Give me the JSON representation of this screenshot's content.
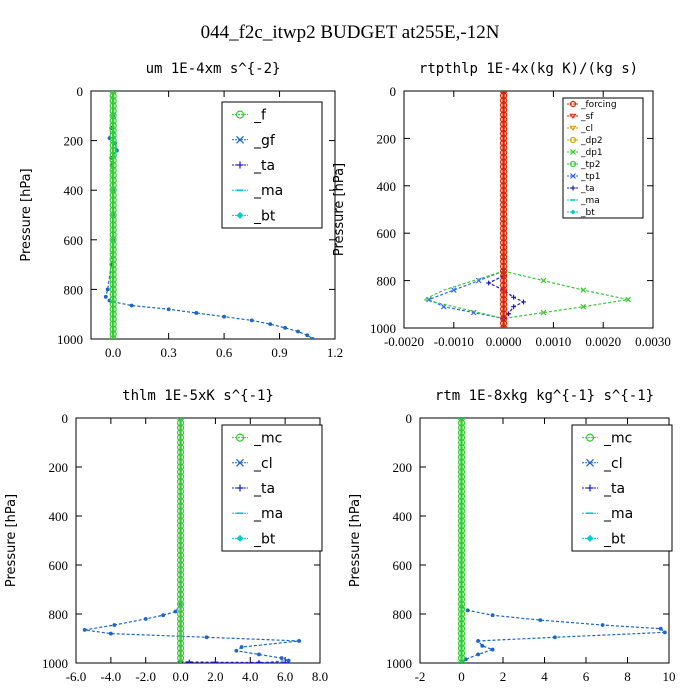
{
  "page_title": "044_f2c_itwp2  BUDGET at255E,-12N",
  "colors": {
    "green": "#33cc33",
    "blue": "#1a66cc",
    "navy": "#1a1acc",
    "cyan": "#00cccc",
    "red": "#dd2200",
    "orange": "#dd9900",
    "gold": "#ccaa00",
    "mediumblue": "#3366ff"
  },
  "chart_data": [
    {
      "type": "line",
      "title": "um   1E-4xm s^{-2}",
      "ylabel": "Pressure [hPa]",
      "xlim": [
        -0.12,
        1.2
      ],
      "ylim": [
        1000,
        0
      ],
      "xticks": [
        "0.0",
        "0.3",
        "0.6",
        "0.9",
        "1.2"
      ],
      "xtick_values": [
        0,
        0.3,
        0.6,
        0.9,
        1.2
      ],
      "yticks": [
        "0",
        "200",
        "400",
        "600",
        "800",
        "1000"
      ],
      "ytick_values": [
        0,
        200,
        400,
        600,
        800,
        1000
      ],
      "legend_style": "big",
      "legend": [
        "_f",
        "_gf",
        "_ta",
        "_ma",
        "_bt"
      ],
      "legend_colors": [
        "#33cc33",
        "#1a66cc",
        "#1a1acc",
        "#00cccc",
        "#00cccc"
      ],
      "legend_markers": [
        "ring",
        "x",
        "plus",
        "dash",
        "diamond"
      ],
      "series": [
        {
          "name": "_gf",
          "color": "#1a66cc",
          "marker": "dot",
          "x": [
            0,
            0,
            -0.01,
            -0.02,
            0.01,
            0.02,
            -0.01,
            -0.005,
            0,
            0,
            0,
            -0.01,
            -0.03,
            -0.04,
            -0.02,
            0,
            0.1,
            0.3,
            0.45,
            0.6,
            0.75,
            0.85,
            0.93,
            1.0,
            1.05,
            1.08
          ],
          "y": [
            0,
            100,
            150,
            190,
            210,
            240,
            270,
            300,
            400,
            500,
            600,
            700,
            800,
            830,
            845,
            850,
            865,
            880,
            895,
            910,
            925,
            940,
            955,
            970,
            985,
            1000
          ]
        },
        {
          "name": "_ma",
          "color": "#00cccc",
          "marker": "none",
          "x": [
            -0.01,
            0,
            0.01,
            0.02,
            0,
            -0.01,
            0,
            0
          ],
          "y": [
            0,
            100,
            200,
            240,
            280,
            300,
            400,
            1000
          ]
        },
        {
          "name": "_f",
          "color": "#33cc33",
          "marker": "ring",
          "x": [
            0,
            0
          ],
          "y": [
            0,
            1000
          ]
        }
      ]
    },
    {
      "type": "line",
      "title": "rtpthlp   1E-4x(kg K)/(kg s)",
      "ylabel": "Pressure [hPa]",
      "xlim": [
        -0.002,
        0.003
      ],
      "ylim": [
        1000,
        0
      ],
      "xticks": [
        "-0.0020",
        "-0.0010",
        "0.0000",
        "0.0010",
        "0.0020",
        "0.0030"
      ],
      "xtick_values": [
        -0.002,
        -0.001,
        0,
        0.001,
        0.002,
        0.003
      ],
      "yticks": [
        "0",
        "200",
        "400",
        "600",
        "800",
        "1000"
      ],
      "ytick_values": [
        0,
        200,
        400,
        600,
        800,
        1000
      ],
      "legend_style": "small",
      "legend": [
        "_forcing",
        "_sf",
        "_cl",
        "_dp2",
        "_dp1",
        "_tp2",
        "_tp1",
        "_ta",
        "_ma",
        "_bt"
      ],
      "legend_colors": [
        "#dd2200",
        "#dd2200",
        "#dd9900",
        "#ccaa00",
        "#33cc33",
        "#33cc33",
        "#3366ff",
        "#1a1acc",
        "#00cccc",
        "#00cccc"
      ],
      "legend_markers": [
        "ring",
        "tri",
        "tri",
        "ring",
        "x",
        "ring",
        "x",
        "plus",
        "dash",
        "diamond"
      ],
      "series": [
        {
          "name": "_dp1",
          "color": "#33cc33",
          "marker": "x",
          "x": [
            0,
            0,
            0,
            0.0008,
            0.0016,
            0.0025,
            0.0016,
            0.0008,
            0,
            0
          ],
          "y": [
            0,
            700,
            760,
            800,
            840,
            880,
            910,
            935,
            960,
            1000
          ]
        },
        {
          "name": "_tp1",
          "color": "#3366ff",
          "marker": "x",
          "x": [
            0,
            0,
            -0.0005,
            -0.001,
            -0.0015,
            -0.0012,
            -0.0006,
            0
          ],
          "y": [
            0,
            760,
            800,
            840,
            880,
            910,
            935,
            960
          ]
        },
        {
          "name": "_tp2",
          "color": "#33cc33",
          "marker": "none",
          "x": [
            0,
            -0.0006,
            -0.0012,
            -0.0016,
            -0.0008,
            0
          ],
          "y": [
            760,
            800,
            840,
            880,
            920,
            960
          ]
        },
        {
          "name": "_ta",
          "color": "#1a1acc",
          "marker": "plus",
          "x": [
            0,
            -0.0003,
            0,
            0.0002,
            0.0004,
            0.0002,
            0.0001,
            0
          ],
          "y": [
            780,
            810,
            840,
            870,
            890,
            910,
            940,
            960
          ]
        },
        {
          "name": "_forcing",
          "color": "#dd2200",
          "marker": "ring",
          "x": [
            0,
            0
          ],
          "y": [
            0,
            1000
          ]
        }
      ]
    },
    {
      "type": "line",
      "title": "thlm   1E-5xK s^{-1}",
      "ylabel": "Pressure [hPa]",
      "xlim": [
        -6.0,
        8.0
      ],
      "ylim": [
        1000,
        0
      ],
      "xticks": [
        "-6.0",
        "-4.0",
        "-2.0",
        "0.0",
        "2.0",
        "4.0",
        "6.0",
        "8.0"
      ],
      "xtick_values": [
        -6,
        -4,
        -2,
        0,
        2,
        4,
        6,
        8
      ],
      "yticks": [
        "0",
        "200",
        "400",
        "600",
        "800",
        "1000"
      ],
      "ytick_values": [
        0,
        200,
        400,
        600,
        800,
        1000
      ],
      "legend_style": "big",
      "legend": [
        "_mc",
        "_cl",
        "_ta",
        "_ma",
        "_bt"
      ],
      "legend_colors": [
        "#33cc33",
        "#1a66cc",
        "#1a1acc",
        "#00cccc",
        "#00cccc"
      ],
      "legend_markers": [
        "ring",
        "x",
        "plus",
        "dash",
        "diamond"
      ],
      "series": [
        {
          "name": "_cl",
          "color": "#1a66cc",
          "marker": "dot",
          "x": [
            0,
            0,
            -0.3,
            -1.0,
            -2.0,
            -3.8,
            -5.5,
            -4.0,
            1.5,
            6.8,
            3.5,
            3.2,
            4.5,
            5.8,
            6.2,
            4.5
          ],
          "y": [
            0,
            760,
            790,
            805,
            820,
            845,
            865,
            880,
            895,
            910,
            935,
            950,
            965,
            980,
            990,
            1000
          ]
        },
        {
          "name": "_ta",
          "color": "#1a1acc",
          "marker": "plus",
          "x": [
            0,
            0.5,
            2.0,
            4.5,
            6.0
          ],
          "y": [
            995,
            996,
            997,
            998,
            999
          ]
        },
        {
          "name": "_mc",
          "color": "#33cc33",
          "marker": "ring",
          "x": [
            0,
            0
          ],
          "y": [
            0,
            1000
          ]
        }
      ]
    },
    {
      "type": "line",
      "title": "rtm   1E-8xkg kg^{-1} s^{-1}",
      "ylabel": "Pressure [hPa]",
      "xlim": [
        -2,
        10
      ],
      "ylim": [
        1000,
        0
      ],
      "xticks": [
        "-2",
        "0",
        "2",
        "4",
        "6",
        "8",
        "10"
      ],
      "xtick_values": [
        -2,
        0,
        2,
        4,
        6,
        8,
        10
      ],
      "yticks": [
        "0",
        "200",
        "400",
        "600",
        "800",
        "1000"
      ],
      "ytick_values": [
        0,
        200,
        400,
        600,
        800,
        1000
      ],
      "legend_style": "big",
      "legend": [
        "_mc",
        "_cl",
        "_ta",
        "_ma",
        "_bt"
      ],
      "legend_colors": [
        "#33cc33",
        "#1a66cc",
        "#1a1acc",
        "#00cccc",
        "#00cccc"
      ],
      "legend_markers": [
        "ring",
        "x",
        "plus",
        "dash",
        "diamond"
      ],
      "series": [
        {
          "name": "_cl",
          "color": "#1a66cc",
          "marker": "dot",
          "x": [
            0,
            0,
            0.3,
            1.5,
            3.8,
            6.8,
            9.6,
            9.8,
            4.5,
            0.8,
            1.0,
            1.5,
            0.8,
            0.2,
            0
          ],
          "y": [
            0,
            770,
            785,
            805,
            825,
            845,
            860,
            875,
            895,
            910,
            930,
            945,
            965,
            985,
            1000
          ]
        },
        {
          "name": "_mc",
          "color": "#33cc33",
          "marker": "ring",
          "x": [
            0,
            0
          ],
          "y": [
            0,
            1000
          ]
        }
      ]
    }
  ]
}
